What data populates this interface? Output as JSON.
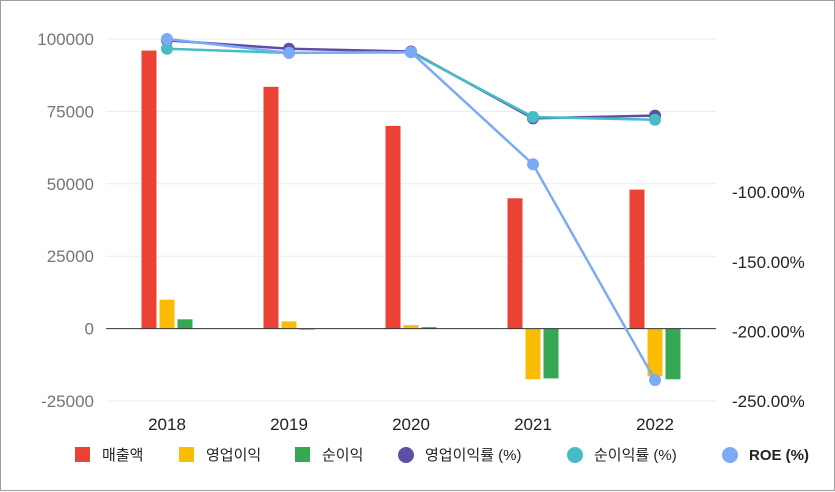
{
  "chart_data": {
    "type": "bar",
    "title": "",
    "categories": [
      "2018",
      "2019",
      "2020",
      "2021",
      "2022"
    ],
    "bar_series": [
      {
        "name": "매출액",
        "color": "#ea4335",
        "values": [
          96000,
          83500,
          70000,
          45000,
          48000
        ]
      },
      {
        "name": "영업이익",
        "color": "#fbbc04",
        "values": [
          10000,
          2500,
          1200,
          -17500,
          -16500
        ]
      },
      {
        "name": "순이익",
        "color": "#34a853",
        "values": [
          3200,
          -300,
          500,
          -17200,
          -17500
        ]
      }
    ],
    "line_series": [
      {
        "name": "영업이익률 (%)",
        "color": "#5f4ea6",
        "values": [
          9.0,
          3.0,
          1.0,
          -47.0,
          -45.0
        ],
        "label_bold": false
      },
      {
        "name": "순이익률 (%)",
        "color": "#46bdc6",
        "values": [
          3.0,
          0.0,
          0.5,
          -46.0,
          -48.0
        ],
        "label_bold": false
      },
      {
        "name": "ROE (%)",
        "color": "#7baaf7",
        "values": [
          10.0,
          0.0,
          0.5,
          -80.0,
          -235.0
        ],
        "label_bold": true
      }
    ],
    "y_left": {
      "min": -25000,
      "max": 100000,
      "ticks": [
        100000,
        75000,
        50000,
        25000,
        0,
        -25000
      ]
    },
    "y_right": {
      "min": -250,
      "max": 10,
      "ticks": [
        "-100.00%",
        "-150.00%",
        "-200.00%",
        "-250.00%"
      ],
      "tick_values": [
        -100,
        -150,
        -200,
        -250
      ]
    },
    "grid": true,
    "legend_position": "bottom"
  }
}
